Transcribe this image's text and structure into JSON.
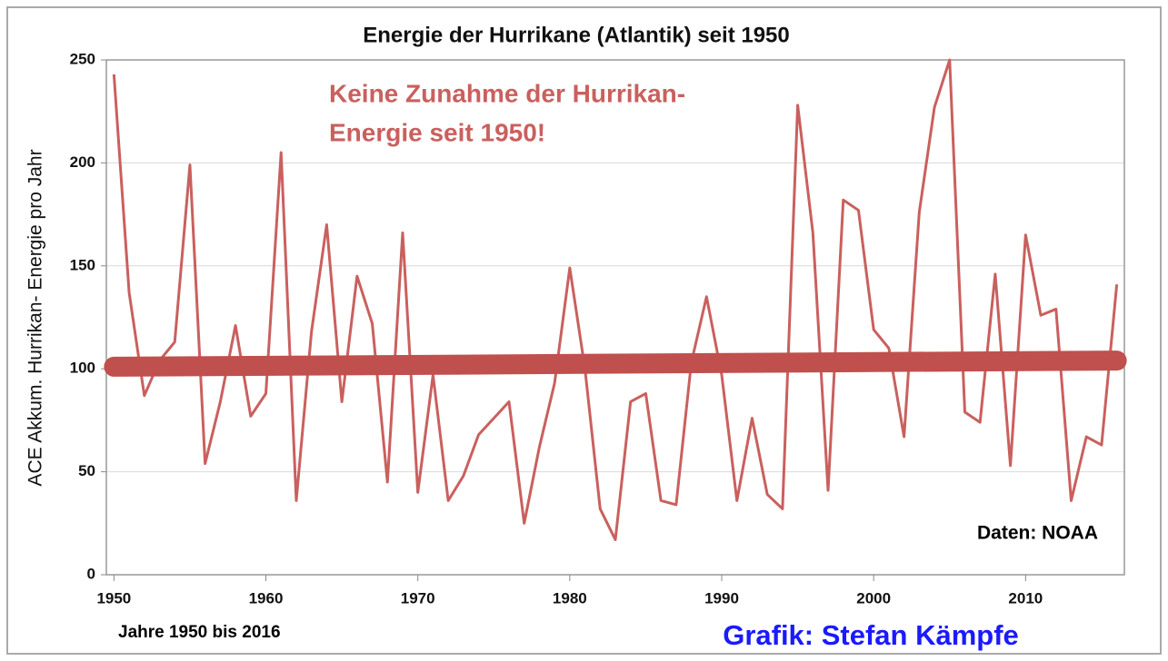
{
  "chart_data": {
    "type": "line",
    "title": "Energie der Hurrikane (Atlantik) seit 1950",
    "ylabel": "ACE Akkum. Hurrikan- Energie pro Jahr",
    "annotation": [
      "Keine Zunahme der Hurrikan-",
      "Energie seit 1950!"
    ],
    "source": "Daten: NOAA",
    "x_note": "Jahre 1950 bis 2016",
    "credit": "Grafik: Stefan Kämpfe",
    "x": [
      1950,
      1951,
      1952,
      1953,
      1954,
      1955,
      1956,
      1957,
      1958,
      1959,
      1960,
      1961,
      1962,
      1963,
      1964,
      1965,
      1966,
      1967,
      1968,
      1969,
      1970,
      1971,
      1972,
      1973,
      1974,
      1975,
      1976,
      1977,
      1978,
      1979,
      1980,
      1981,
      1982,
      1983,
      1984,
      1985,
      1986,
      1987,
      1988,
      1989,
      1990,
      1991,
      1992,
      1993,
      1994,
      1995,
      1996,
      1997,
      1998,
      1999,
      2000,
      2001,
      2002,
      2003,
      2004,
      2005,
      2006,
      2007,
      2008,
      2009,
      2010,
      2011,
      2012,
      2013,
      2014,
      2015,
      2016
    ],
    "series": [
      {
        "color": "#c9605e",
        "values": [
          243,
          137,
          87,
          104,
          113,
          199,
          54,
          84,
          121,
          77,
          88,
          205,
          36,
          118,
          170,
          84,
          145,
          122,
          45,
          166,
          40,
          97,
          36,
          48,
          68,
          76,
          84,
          25,
          62,
          93,
          149,
          100,
          32,
          17,
          84,
          88,
          36,
          34,
          103,
          135,
          97,
          36,
          76,
          39,
          32,
          228,
          166,
          41,
          182,
          177,
          119,
          110,
          67,
          176,
          227,
          250,
          79,
          74,
          146,
          53,
          165,
          126,
          129,
          36,
          67,
          63,
          141
        ]
      }
    ],
    "trend": {
      "color": "#c0504d",
      "x": [
        1950,
        2016
      ],
      "values": [
        101,
        104
      ]
    },
    "xlim": [
      1949.5,
      2016.5
    ],
    "xticks": [
      1950,
      1960,
      1970,
      1980,
      1990,
      2000,
      2010
    ],
    "ylim": [
      0,
      250
    ],
    "yticks": [
      0,
      50,
      100,
      150,
      200,
      250
    ],
    "grid": true
  }
}
